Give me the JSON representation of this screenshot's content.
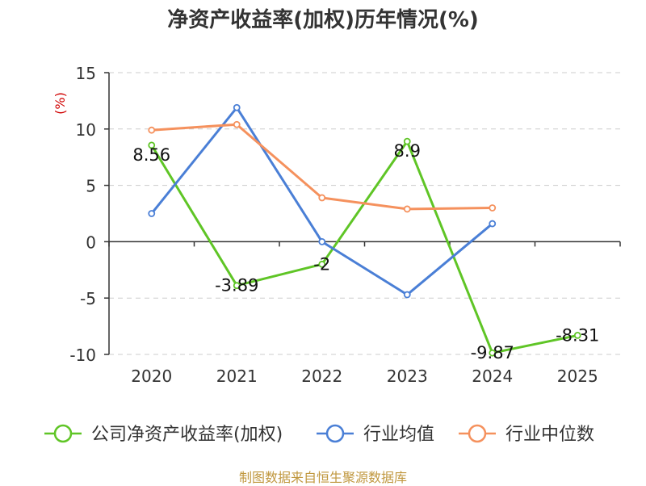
{
  "title": "净资产收益率(加权)历年情况(%)",
  "source": "制图数据来自恒生聚源数据库",
  "colors": {
    "axis": "#333333",
    "grid": "#cccccc",
    "unit": "#d00000",
    "text": "#333333"
  },
  "chart_data": {
    "type": "line",
    "title": "净资产收益率(加权)历年情况(%)",
    "ylabel": "(%)",
    "xlabel": "",
    "ylim": [
      -10,
      15
    ],
    "yticks": [
      15,
      10,
      5,
      0,
      -5,
      -10
    ],
    "categories": [
      "2020",
      "2021",
      "2022",
      "2023",
      "2024",
      "2025"
    ],
    "grid": true,
    "legend_position": "bottom",
    "series": [
      {
        "name": "公司净资产收益率(加权)",
        "color": "#5fc526",
        "values": [
          8.56,
          -3.89,
          -2,
          8.9,
          -9.87,
          -8.31
        ],
        "labels": [
          "8.56",
          "-3.89",
          "-2",
          "8.9",
          "-9.87",
          "-8.31"
        ]
      },
      {
        "name": "行业均值",
        "color": "#4a7fd6",
        "values": [
          2.5,
          11.9,
          0.0,
          -4.7,
          1.6,
          null
        ]
      },
      {
        "name": "行业中位数",
        "color": "#f5915d",
        "values": [
          9.9,
          10.4,
          3.9,
          2.9,
          3.0,
          null
        ]
      }
    ]
  }
}
